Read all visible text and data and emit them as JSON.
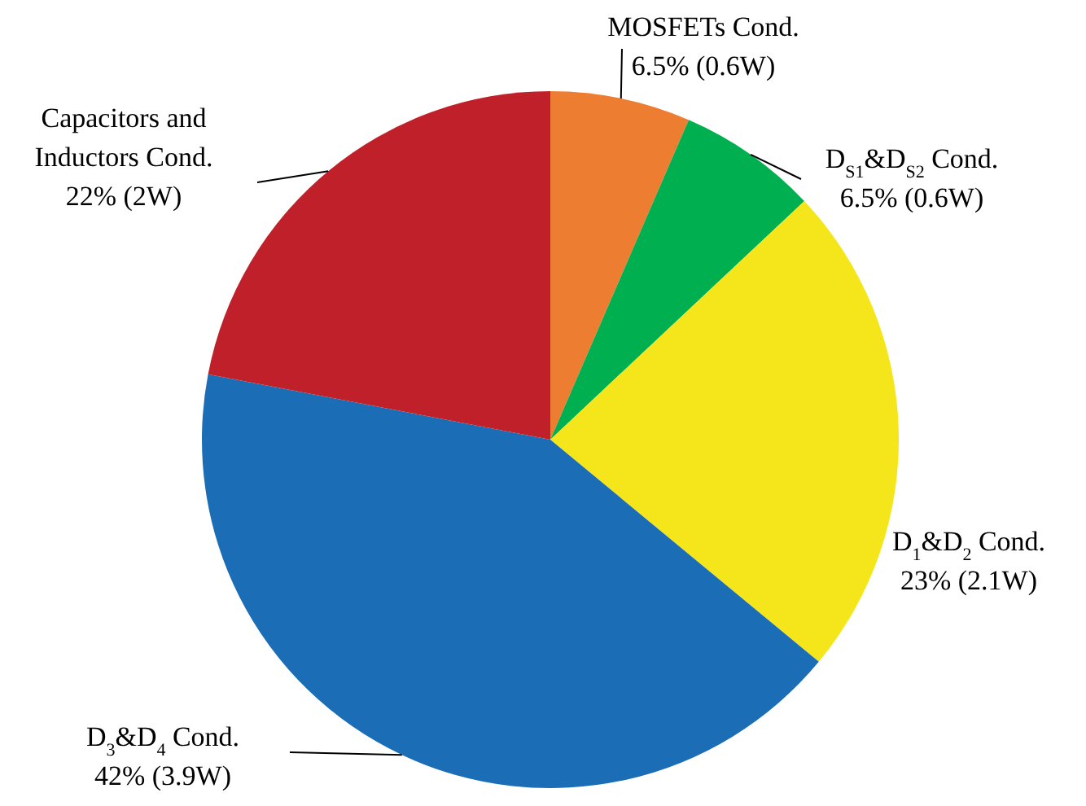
{
  "chart_data": {
    "type": "pie",
    "categories": [
      "MOSFETs Cond.",
      "D$_{S1}$&D$_{S2}$ Cond.",
      "D$_{1}$&D$_{2}$ Cond.",
      "D$_{3}$&D$_{4}$ Cond.",
      "Capacitors and Inductors Cond."
    ],
    "values": [
      6.5,
      6.5,
      23,
      42,
      22
    ],
    "colors": [
      "#ed7d31",
      "#00b050",
      "#f5e61b",
      "#1b6db5",
      "#c0202a"
    ],
    "value_labels": [
      "6.5% (0.6W)",
      "6.5% (0.6W)",
      "23% (2.1W)",
      "42% (3.9W)",
      "22% (2W)"
    ]
  }
}
